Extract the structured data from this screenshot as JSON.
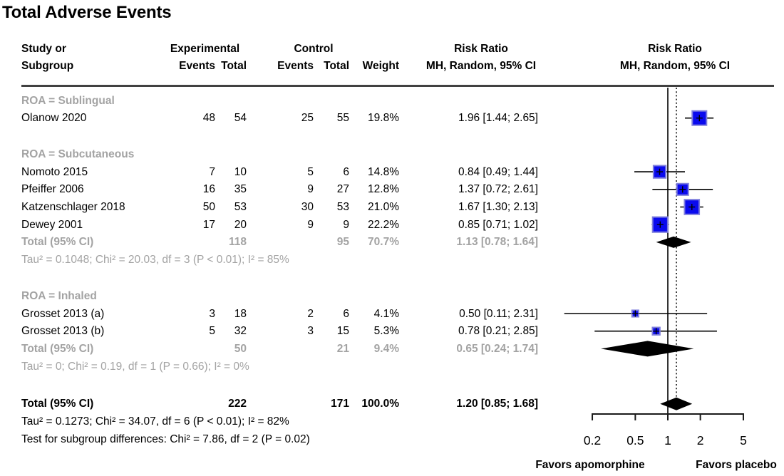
{
  "title": "Total Adverse Events",
  "header": {
    "study_line1": "Study or",
    "study_line2": "Subgroup",
    "experimental": "Experimental",
    "control": "Control",
    "events": "Events",
    "total": "Total",
    "weight": "Weight",
    "risk_ratio": "Risk Ratio",
    "method": "MH, Random, 95% CI"
  },
  "labels": {
    "pooled": "Total (95% CI)"
  },
  "axis": {
    "ticks": [
      "0.2",
      "0.5",
      "1",
      "2",
      "5"
    ],
    "favors_left": "Favors apomorphine",
    "favors_right": "Favors placebo"
  },
  "colors": {
    "square_fill": "#0a0aee",
    "square_border": "#7d7ddd",
    "diamond": "#000000",
    "gray_text": "#a3a3a3",
    "line": "#000000"
  },
  "chart_data": {
    "type": "forest",
    "title": "Total Adverse Events",
    "effect_measure": "Risk Ratio",
    "method": "MH, Random, 95% CI",
    "x_scale": "log",
    "x_ticks": [
      0.2,
      0.5,
      1,
      2,
      5
    ],
    "null_line": 1,
    "footer_left": "Favors apomorphine",
    "footer_right": "Favors placebo",
    "subgroups": [
      {
        "label": "ROA = Sublingual",
        "studies": [
          {
            "study": "Olanow 2020",
            "e_events": 48,
            "e_total": 54,
            "c_events": 25,
            "c_total": 55,
            "weight": 19.8,
            "rr": 1.96,
            "lo": 1.44,
            "hi": 2.65
          }
        ],
        "total": null,
        "heterogeneity": null
      },
      {
        "label": "ROA = Subcutaneous",
        "studies": [
          {
            "study": "Nomoto 2015",
            "e_events": 7,
            "e_total": 10,
            "c_events": 5,
            "c_total": 6,
            "weight": 14.8,
            "rr": 0.84,
            "lo": 0.49,
            "hi": 1.44
          },
          {
            "study": "Pfeiffer 2006",
            "e_events": 16,
            "e_total": 35,
            "c_events": 9,
            "c_total": 27,
            "weight": 12.8,
            "rr": 1.37,
            "lo": 0.72,
            "hi": 2.61
          },
          {
            "study": "Katzenschlager 2018",
            "e_events": 50,
            "e_total": 53,
            "c_events": 30,
            "c_total": 53,
            "weight": 21.0,
            "rr": 1.67,
            "lo": 1.3,
            "hi": 2.13
          },
          {
            "study": "Dewey 2001",
            "e_events": 17,
            "e_total": 20,
            "c_events": 9,
            "c_total": 9,
            "weight": 22.2,
            "rr": 0.85,
            "lo": 0.71,
            "hi": 1.02
          }
        ],
        "total": {
          "e_total": 118,
          "c_total": 95,
          "weight": 70.7,
          "rr": 1.13,
          "lo": 0.78,
          "hi": 1.64
        },
        "heterogeneity": "Tau² = 0.1048; Chi² = 20.03, df = 3 (P < 0.01); I² = 85%"
      },
      {
        "label": "ROA = Inhaled",
        "studies": [
          {
            "study": "Grosset 2013 (a)",
            "e_events": 3,
            "e_total": 18,
            "c_events": 2,
            "c_total": 6,
            "weight": 4.1,
            "rr": 0.5,
            "lo": 0.11,
            "hi": 2.31
          },
          {
            "study": "Grosset 2013 (b)",
            "e_events": 5,
            "e_total": 32,
            "c_events": 3,
            "c_total": 15,
            "weight": 5.3,
            "rr": 0.78,
            "lo": 0.21,
            "hi": 2.85
          }
        ],
        "total": {
          "e_total": 50,
          "c_total": 21,
          "weight": 9.4,
          "rr": 0.65,
          "lo": 0.24,
          "hi": 1.74
        },
        "heterogeneity": "Tau² = 0; Chi² = 0.19, df = 1 (P = 0.66); I² = 0%"
      }
    ],
    "overall": {
      "e_total": 222,
      "c_total": 171,
      "weight": 100.0,
      "rr": 1.2,
      "lo": 0.85,
      "hi": 1.68
    },
    "overall_heterogeneity": "Tau² = 0.1273; Chi² = 34.07, df = 6 (P < 0.01); I² = 82%",
    "subgroup_test": "Test for subgroup differences: Chi² = 7.86, df = 2 (P = 0.02)"
  }
}
